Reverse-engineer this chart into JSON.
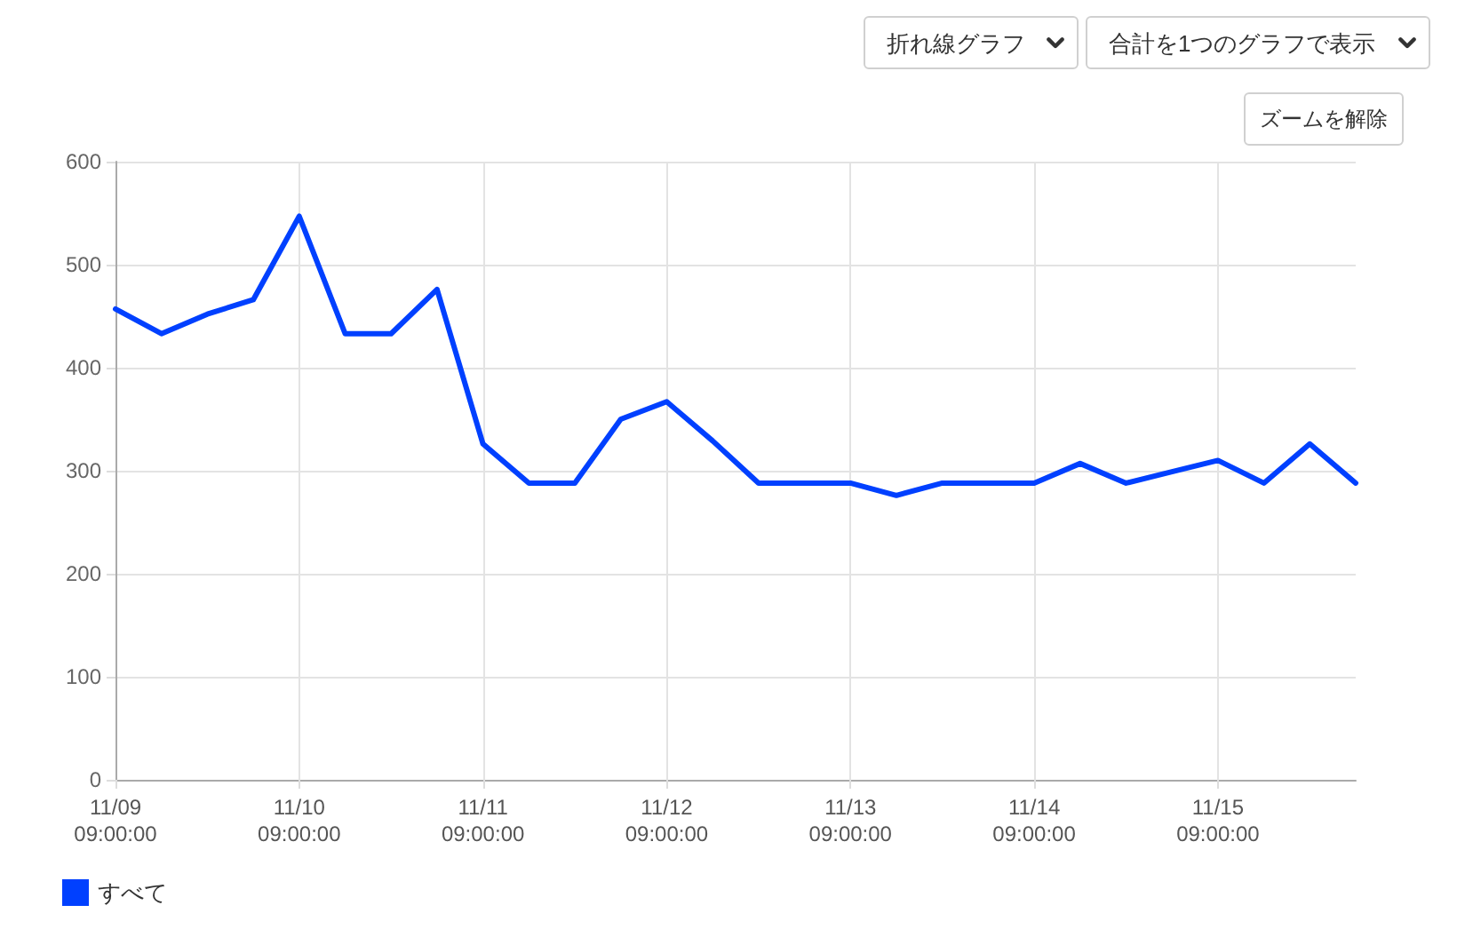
{
  "chart_data": {
    "type": "line",
    "x": [
      "--11-09T09:00",
      "--11-09T15:00",
      "--11-09T21:00",
      "--11-10T03:00",
      "--11-10T09:00",
      "--11-10T15:00",
      "--11-10T21:00",
      "--11-11T03:00",
      "--11-11T09:00",
      "--11-11T15:00",
      "--11-11T21:00",
      "--11-12T03:00",
      "--11-12T09:00",
      "--11-12T15:00",
      "--11-12T21:00",
      "--11-13T03:00",
      "--11-13T09:00",
      "--11-13T15:00",
      "--11-13T21:00",
      "--11-14T03:00",
      "--11-14T09:00",
      "--11-14T15:00",
      "--11-14T21:00",
      "--11-15T03:00",
      "--11-15T09:00",
      "--11-15T15:00",
      "--11-15T21:00",
      "--11-16T03:00"
    ],
    "series": [
      {
        "name": "すべて",
        "color": "#0040ff",
        "values": [
          457,
          433,
          452,
          466,
          547,
          433,
          433,
          476,
          326,
          288,
          288,
          350,
          367,
          329,
          288,
          288,
          288,
          276,
          288,
          288,
          288,
          307,
          288,
          299,
          310,
          288,
          326,
          288
        ]
      }
    ],
    "xlim": [
      "--11-09T09:00",
      "--11-16T03:00"
    ],
    "xticks": [
      {
        "value": "--11-09T09:00",
        "label": "11/09\n09:00:00"
      },
      {
        "value": "--11-10T09:00",
        "label": "11/10\n09:00:00"
      },
      {
        "value": "--11-11T09:00",
        "label": "11/11\n09:00:00"
      },
      {
        "value": "--11-12T09:00",
        "label": "11/12\n09:00:00"
      },
      {
        "value": "--11-13T09:00",
        "label": "11/13\n09:00:00"
      },
      {
        "value": "--11-14T09:00",
        "label": "11/14\n09:00:00"
      },
      {
        "value": "--11-15T09:00",
        "label": "11/15\n09:00:00"
      }
    ],
    "ylim": [
      0,
      600
    ],
    "yticks": [
      0,
      100,
      200,
      300,
      400,
      500,
      600
    ],
    "grid": true,
    "legend": "bottom left",
    "marker": "none",
    "line_style": "solid",
    "annotations": [
      "折れ線グラフ",
      "合計を1つのグラフで表示",
      "ズームを解除"
    ]
  }
}
